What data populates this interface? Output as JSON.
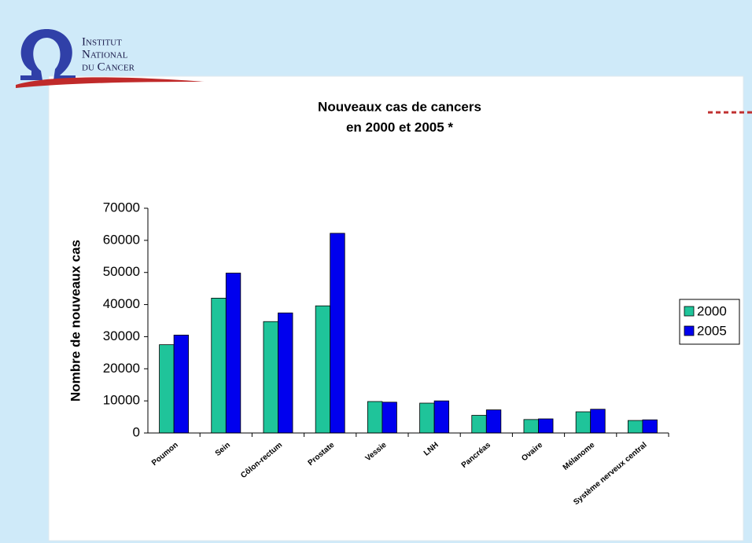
{
  "logo": {
    "lines": [
      "Institut",
      "National",
      "du Cancer"
    ]
  },
  "chart_data": {
    "type": "bar",
    "title": [
      "Nouveaux cas de cancers",
      "en 2000 et 2005 *"
    ],
    "y_label": "Nombre de nouveaux cas",
    "categories": [
      "Poumon",
      "Sein",
      "Côlon-rectum",
      "Prostate",
      "Vessie",
      "LNH",
      "Pancréas",
      "Ovaire",
      "Mélanome",
      "Système nerveux central"
    ],
    "series": [
      {
        "name": "2000",
        "color": "#1fc49a",
        "values": [
          27500,
          42000,
          34700,
          39600,
          9800,
          9300,
          5500,
          4200,
          6600,
          3900
        ]
      },
      {
        "name": "2005",
        "color": "#0000ee",
        "values": [
          30500,
          49800,
          37400,
          62200,
          9600,
          10000,
          7200,
          4400,
          7400,
          4100
        ]
      }
    ],
    "ylim": [
      0,
      70000
    ],
    "yticks": [
      0,
      10000,
      20000,
      30000,
      40000,
      50000,
      60000,
      70000
    ],
    "grid": false,
    "legend": "right"
  }
}
